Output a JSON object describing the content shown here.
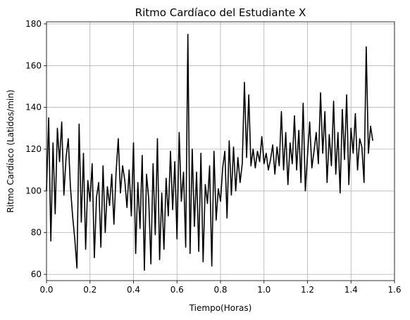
{
  "chart_data": {
    "type": "line",
    "title": "Ritmo Cardíaco del Estudiante X",
    "xlabel": "Tiempo(Horas)",
    "ylabel": "Ritmo Cardíaco (Latidos/min)",
    "xlim": [
      0,
      1.6
    ],
    "ylim": [
      57,
      181
    ],
    "xticks": [
      0.0,
      0.2,
      0.4,
      0.6,
      0.8,
      1.0,
      1.2,
      1.4,
      1.6
    ],
    "xtick_labels": [
      "0.0",
      "0.2",
      "0.4",
      "0.6",
      "0.8",
      "1.0",
      "1.2",
      "1.4",
      "1.6"
    ],
    "yticks": [
      60,
      80,
      100,
      120,
      140,
      160,
      180
    ],
    "ytick_labels": [
      "60",
      "80",
      "100",
      "120",
      "140",
      "160",
      "180"
    ],
    "grid": true,
    "legend": false,
    "series": [
      {
        "color": "#000000",
        "x": [
          0.0,
          0.01,
          0.02,
          0.03,
          0.04,
          0.05,
          0.06,
          0.07,
          0.08,
          0.09,
          0.1,
          0.11,
          0.12,
          0.13,
          0.14,
          0.15,
          0.16,
          0.17,
          0.18,
          0.19,
          0.2,
          0.21,
          0.22,
          0.23,
          0.24,
          0.25,
          0.26,
          0.27,
          0.28,
          0.29,
          0.3,
          0.31,
          0.32,
          0.33,
          0.34,
          0.35,
          0.36,
          0.37,
          0.38,
          0.39,
          0.4,
          0.41,
          0.42,
          0.43,
          0.44,
          0.45,
          0.46,
          0.47,
          0.48,
          0.49,
          0.5,
          0.51,
          0.52,
          0.53,
          0.54,
          0.55,
          0.56,
          0.57,
          0.58,
          0.59,
          0.6,
          0.61,
          0.62,
          0.63,
          0.64,
          0.65,
          0.66,
          0.67,
          0.68,
          0.69,
          0.7,
          0.71,
          0.72,
          0.73,
          0.74,
          0.75,
          0.76,
          0.77,
          0.78,
          0.79,
          0.8,
          0.81,
          0.82,
          0.83,
          0.84,
          0.85,
          0.86,
          0.87,
          0.88,
          0.89,
          0.9,
          0.91,
          0.92,
          0.93,
          0.94,
          0.95,
          0.96,
          0.97,
          0.98,
          0.99,
          1.0,
          1.01,
          1.02,
          1.03,
          1.04,
          1.05,
          1.06,
          1.07,
          1.08,
          1.09,
          1.1,
          1.11,
          1.12,
          1.13,
          1.14,
          1.15,
          1.16,
          1.17,
          1.18,
          1.19,
          1.2,
          1.21,
          1.22,
          1.23,
          1.24,
          1.25,
          1.26,
          1.27,
          1.28,
          1.29,
          1.3,
          1.31,
          1.32,
          1.33,
          1.34,
          1.35,
          1.36,
          1.37,
          1.38,
          1.39,
          1.4,
          1.41,
          1.42,
          1.43,
          1.44,
          1.45,
          1.46,
          1.47,
          1.48,
          1.49,
          1.5
        ],
        "y": [
          100,
          135,
          76,
          123,
          89,
          130,
          114,
          133,
          98,
          116,
          125,
          102,
          88,
          77,
          63,
          132,
          85,
          118,
          72,
          105,
          95,
          113,
          68,
          97,
          104,
          73,
          112,
          80,
          102,
          93,
          108,
          84,
          109,
          125,
          99,
          112,
          105,
          92,
          110,
          88,
          123,
          70,
          104,
          82,
          117,
          62,
          108,
          96,
          65,
          113,
          79,
          125,
          67,
          99,
          72,
          106,
          88,
          119,
          91,
          114,
          77,
          128,
          95,
          109,
          73,
          175,
          70,
          120,
          83,
          109,
          71,
          118,
          66,
          103,
          94,
          112,
          64,
          119,
          86,
          101,
          95,
          111,
          119,
          87,
          124,
          98,
          121,
          100,
          116,
          104,
          113,
          152,
          116,
          146,
          112,
          120,
          111,
          119,
          114,
          126,
          113,
          118,
          110,
          115,
          122,
          108,
          121,
          112,
          138,
          110,
          128,
          103,
          123,
          113,
          136,
          110,
          129,
          104,
          142,
          100,
          117,
          133,
          111,
          119,
          128,
          113,
          147,
          118,
          138,
          104,
          127,
          112,
          143,
          108,
          128,
          99,
          139,
          115,
          146,
          103,
          130,
          118,
          137,
          110,
          125,
          121,
          104,
          169,
          118,
          131,
          124
        ]
      }
    ]
  }
}
